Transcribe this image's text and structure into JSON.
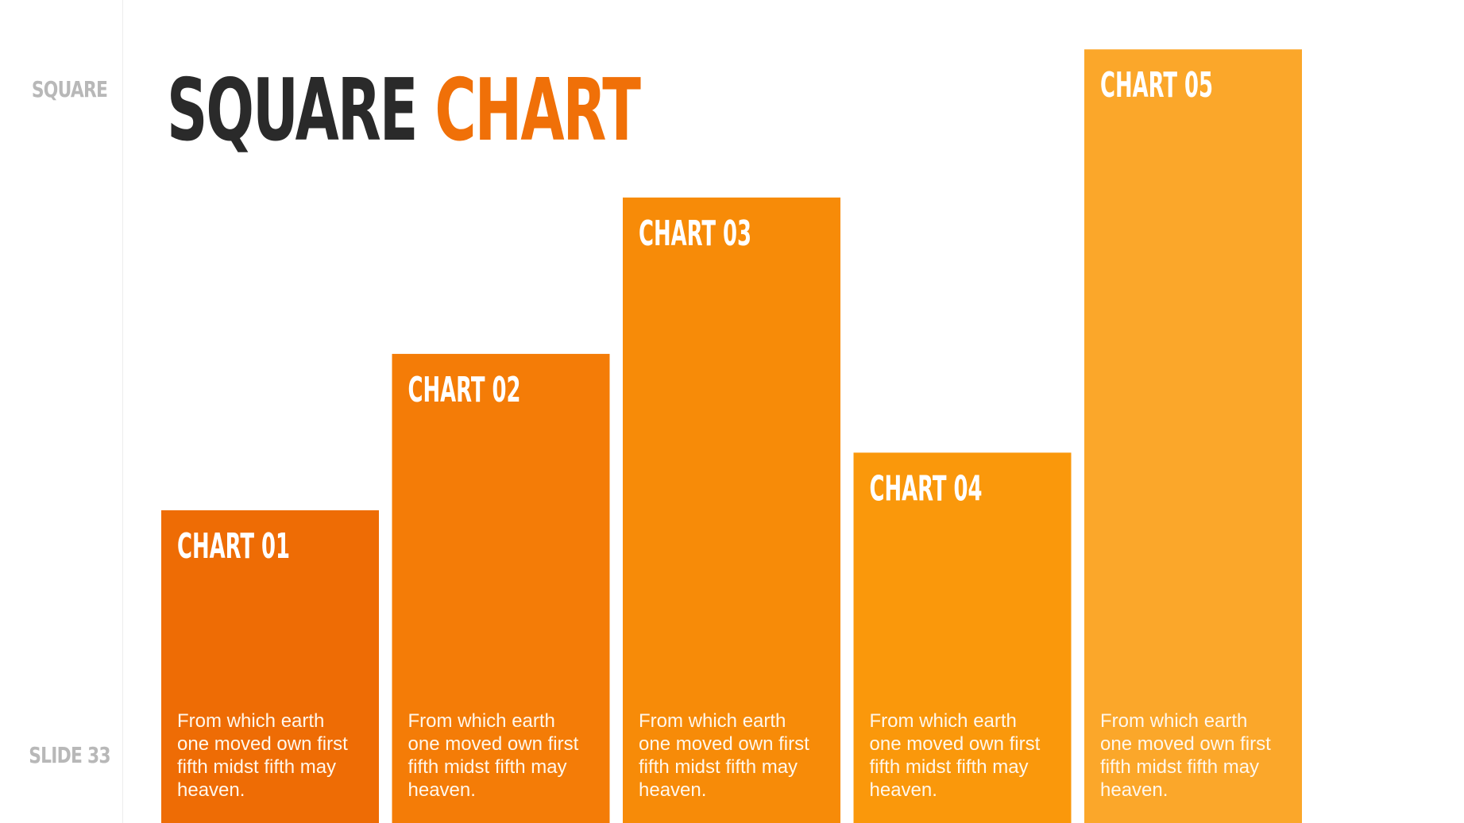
{
  "slide": {
    "side_top": "SQUARE",
    "side_bottom": "SLIDE 33",
    "title_part1": "SQUARE",
    "title_part2": "CHART"
  },
  "colors": {
    "title_dark": "#2a2a2a",
    "accent": "#f07008",
    "bars": [
      "#ee6c05",
      "#f47c07",
      "#f78b08",
      "#fa980b",
      "#fba72a"
    ]
  },
  "chart_data": {
    "type": "bar",
    "categories": [
      "CHART 01",
      "CHART 02",
      "CHART 03",
      "CHART 04",
      "CHART 05"
    ],
    "values": [
      38,
      57,
      76,
      45,
      94
    ],
    "descriptions": [
      [
        "From which earth",
        "one moved own first",
        "fifth midst fifth may",
        "heaven."
      ],
      [
        "From which earth",
        "one moved own first",
        "fifth midst fifth may",
        "heaven."
      ],
      [
        "From which earth",
        "one moved own first",
        "fifth midst fifth may",
        "heaven."
      ],
      [
        "From which earth",
        "one moved own first",
        "fifth midst fifth may",
        "heaven."
      ],
      [
        "From which earth",
        "one moved own first",
        "fifth midst fifth may",
        "heaven."
      ]
    ],
    "ylim": [
      0,
      100
    ],
    "grid": false
  }
}
